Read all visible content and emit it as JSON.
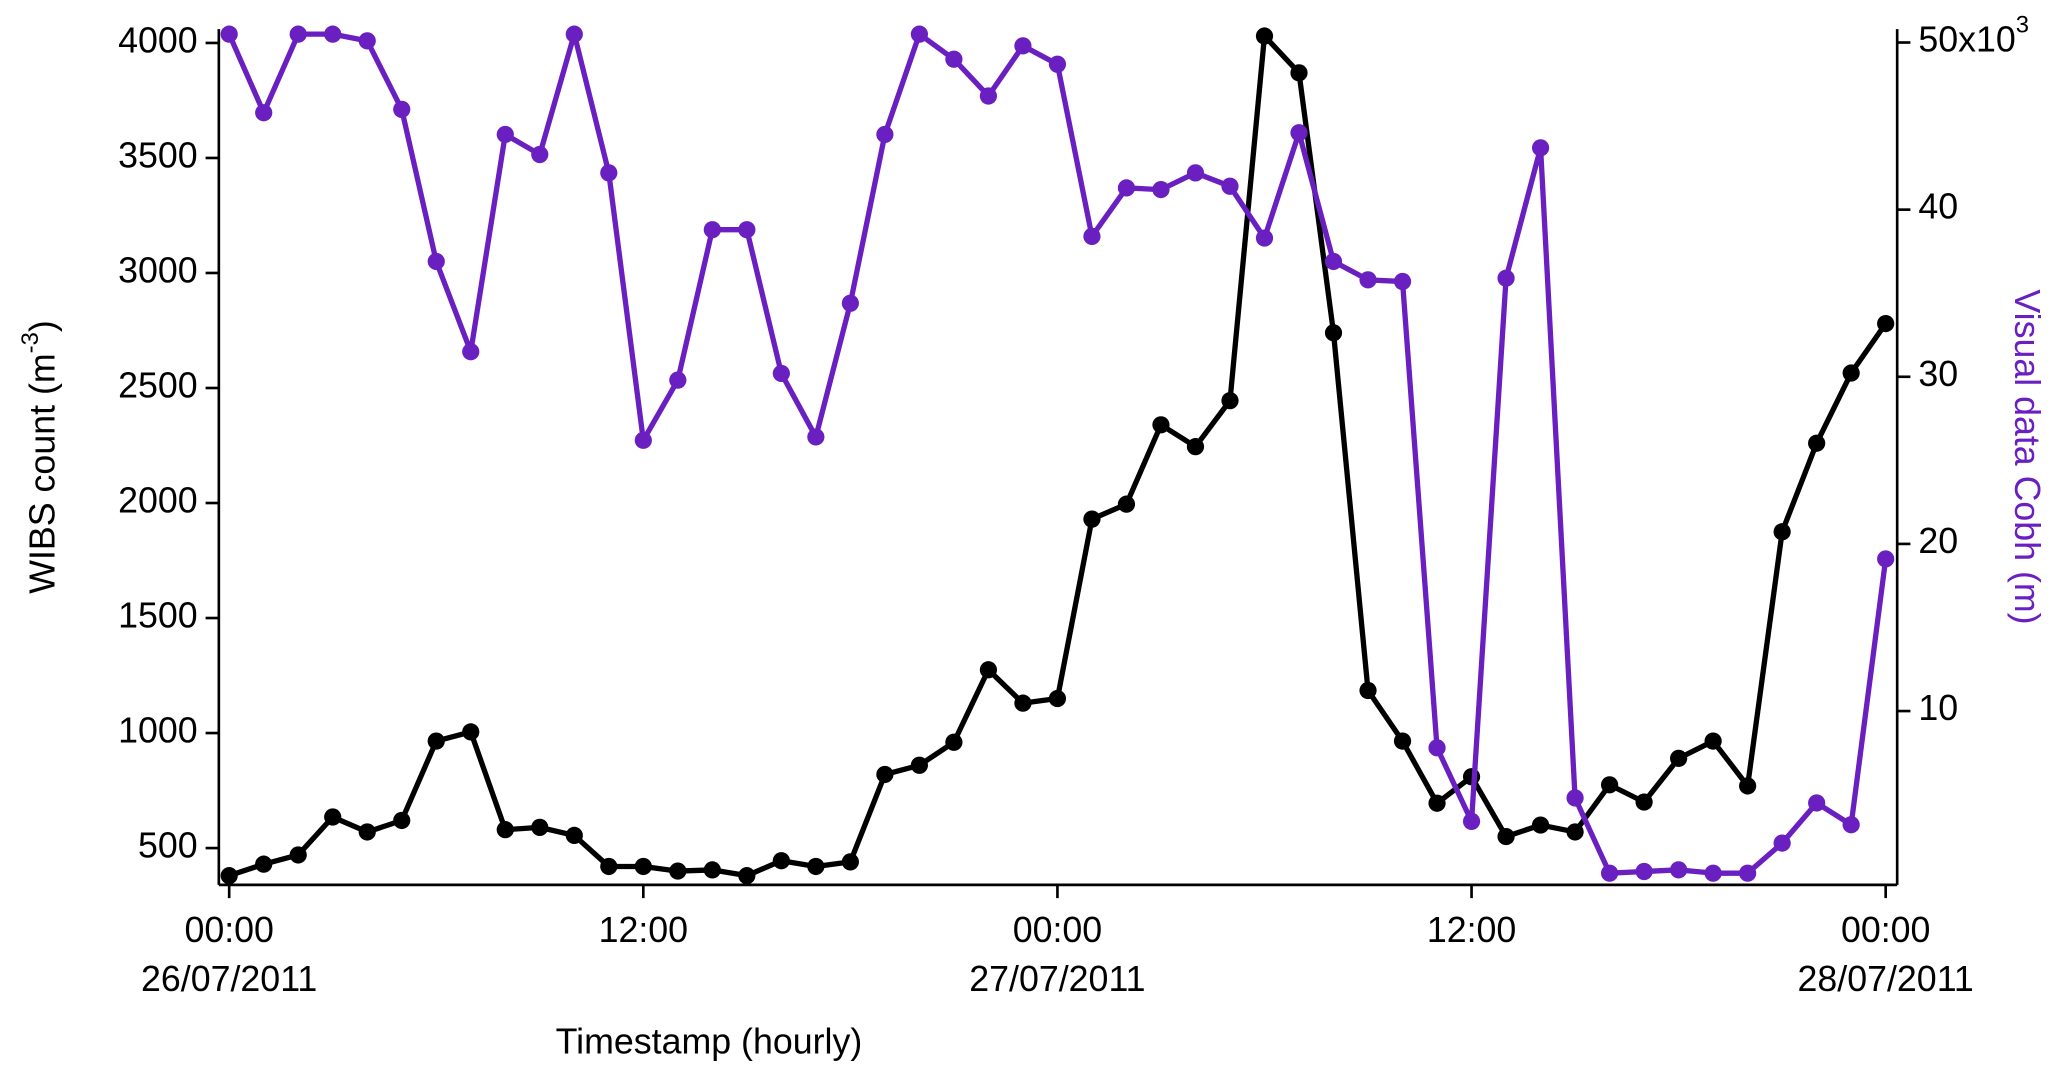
{
  "chart_data": {
    "type": "line",
    "xlabel": "Timestamp (hourly)",
    "ylabel": [
      "WIBS count (m",
      "-3",
      ")"
    ],
    "y2label": "Visual data Cobh (m)",
    "x": [
      "2011-07-26T00:00",
      "2011-07-26T01:00",
      "2011-07-26T02:00",
      "2011-07-26T03:00",
      "2011-07-26T04:00",
      "2011-07-26T05:00",
      "2011-07-26T06:00",
      "2011-07-26T07:00",
      "2011-07-26T08:00",
      "2011-07-26T09:00",
      "2011-07-26T10:00",
      "2011-07-26T11:00",
      "2011-07-26T12:00",
      "2011-07-26T13:00",
      "2011-07-26T14:00",
      "2011-07-26T15:00",
      "2011-07-26T16:00",
      "2011-07-26T17:00",
      "2011-07-26T18:00",
      "2011-07-26T19:00",
      "2011-07-26T20:00",
      "2011-07-26T21:00",
      "2011-07-26T22:00",
      "2011-07-26T23:00",
      "2011-07-27T00:00",
      "2011-07-27T01:00",
      "2011-07-27T02:00",
      "2011-07-27T03:00",
      "2011-07-27T04:00",
      "2011-07-27T05:00",
      "2011-07-27T06:00",
      "2011-07-27T07:00",
      "2011-07-27T08:00",
      "2011-07-27T09:00",
      "2011-07-27T10:00",
      "2011-07-27T11:00",
      "2011-07-27T12:00",
      "2011-07-27T13:00",
      "2011-07-27T14:00",
      "2011-07-27T15:00",
      "2011-07-27T16:00",
      "2011-07-27T17:00",
      "2011-07-27T18:00",
      "2011-07-27T19:00",
      "2011-07-27T20:00",
      "2011-07-27T21:00",
      "2011-07-27T22:00",
      "2011-07-27T23:00",
      "2011-07-28T00:00"
    ],
    "xlim": [
      "2011-07-25T23:42",
      "2011-07-28T00:20"
    ],
    "xticks": [
      {
        "value": "2011-07-26T00:00",
        "label": [
          "00:00",
          "26/07/2011"
        ]
      },
      {
        "value": "2011-07-26T12:00",
        "label": [
          "12:00"
        ]
      },
      {
        "value": "2011-07-27T00:00",
        "label": [
          "00:00",
          "27/07/2011"
        ]
      },
      {
        "value": "2011-07-27T12:00",
        "label": [
          "12:00"
        ]
      },
      {
        "value": "2011-07-28T00:00",
        "label": [
          "00:00",
          "28/07/2011"
        ]
      }
    ],
    "ylim": [
      340,
      4060
    ],
    "yticks": [
      500,
      1000,
      1500,
      2000,
      2500,
      3000,
      3500,
      4000
    ],
    "y2lim": [
      -400,
      50800
    ],
    "y2ticks": [
      {
        "value": 10000,
        "label": "10"
      },
      {
        "value": 20000,
        "label": "20"
      },
      {
        "value": 30000,
        "label": "30"
      },
      {
        "value": 40000,
        "label": "40"
      },
      {
        "value": 50000,
        "label": "50x10",
        "label_superscript": "3"
      }
    ],
    "series": [
      {
        "color": "#000000",
        "values": [
          380,
          430,
          470,
          635,
          570,
          620,
          965,
          1005,
          580,
          590,
          555,
          420,
          420,
          400,
          405,
          380,
          445,
          420,
          440,
          820,
          860,
          960,
          1275,
          1130,
          1150,
          1930,
          1995,
          2340,
          2245,
          2445,
          4030,
          3870,
          2740,
          1185,
          965,
          695,
          810,
          550,
          600,
          570,
          775,
          700,
          890,
          965,
          770,
          1875,
          2260,
          2565,
          2780
        ]
      },
      {
        "color": "#6a1fc0",
        "axis": "y2",
        "values": [
          50500,
          45800,
          50500,
          50500,
          50100,
          46000,
          36900,
          31500,
          44500,
          43300,
          50500,
          42200,
          26200,
          29800,
          38800,
          38800,
          30200,
          26400,
          34400,
          44500,
          50500,
          49000,
          46800,
          49800,
          48700,
          38400,
          41300,
          41200,
          42200,
          41400,
          38300,
          44600,
          36900,
          35800,
          35700,
          7800,
          3400,
          35900,
          43700,
          4800,
          300,
          400,
          500,
          300,
          300,
          2100,
          4500,
          3200,
          19100
        ]
      }
    ]
  }
}
